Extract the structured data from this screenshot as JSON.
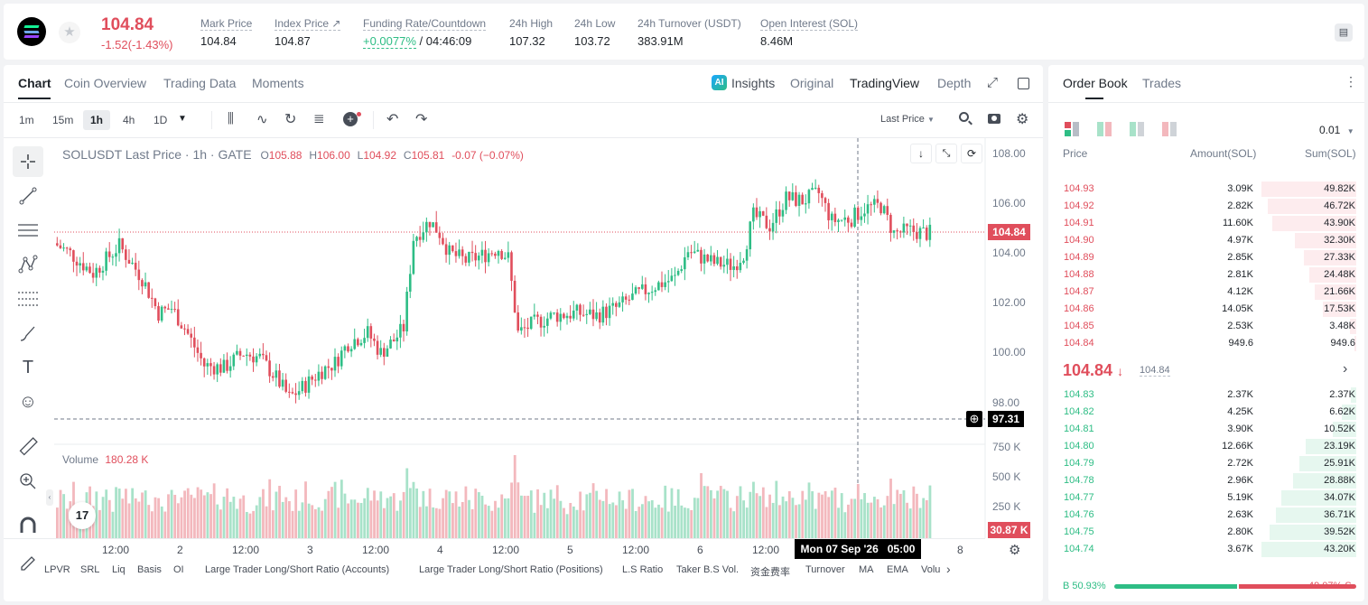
{
  "header": {
    "price": "104.84",
    "change": "-1.52(-1.43%)",
    "stats": [
      {
        "label": "Mark Price",
        "value": "104.84"
      },
      {
        "label": "Index Price ↗",
        "value": "104.87"
      },
      {
        "label": "Funding Rate/Countdown",
        "value_green": "+0.0077%",
        "value": "/ 04:46:09"
      },
      {
        "label": "24h High",
        "value": "107.32"
      },
      {
        "label": "24h Low",
        "value": "103.72"
      },
      {
        "label": "24h Turnover (USDT)",
        "value": "383.91M"
      },
      {
        "label": "Open Interest (SOL)",
        "value": "8.46M"
      }
    ]
  },
  "chart_tabs": [
    "Chart",
    "Coin Overview",
    "Trading Data",
    "Moments"
  ],
  "chart_views": {
    "insights": "Insights",
    "original": "Original",
    "tradingview": "TradingView",
    "depth": "Depth"
  },
  "timeframes": [
    "1m",
    "15m",
    "1h",
    "4h",
    "1D"
  ],
  "price_type": "Last Price",
  "legend": {
    "symbol": "SOLUSDT Last Price · 1h · GATE",
    "o_l": "O",
    "o": "105.88",
    "h_l": "H",
    "h": "106.00",
    "l_l": "L",
    "l": "104.92",
    "c_l": "C",
    "c": "105.81",
    "chg": "-0.07 (−0.07%)"
  },
  "volume_legend": {
    "label": "Volume",
    "value": "180.28 K"
  },
  "price_axis": [
    "108.00",
    "106.00",
    "104.00",
    "102.00",
    "100.00",
    "98.00"
  ],
  "volume_axis": [
    "750 K",
    "500 K",
    "250 K"
  ],
  "last_price_tag": "104.84",
  "crosshair_price_tag": "97.31",
  "volume_tag": "30.87 K",
  "time_axis": [
    "12:00",
    "2",
    "12:00",
    "3",
    "12:00",
    "4",
    "12:00",
    "5",
    "12:00",
    "6",
    "12:00",
    "8"
  ],
  "crosshair_time": "Mon 07 Sep '26   05:00",
  "indicators": [
    "LPVR",
    "SRL",
    "Liq",
    "Basis",
    "OI",
    "Large Trader Long/Short Ratio (Accounts)",
    "Large Trader Long/Short Ratio (Positions)",
    "L.S Ratio",
    "Taker B.S Vol.",
    "资金费率",
    "Turnover",
    "MA",
    "EMA",
    "Volu"
  ],
  "orderbook": {
    "tabs": [
      "Order Book",
      "Trades"
    ],
    "precision": "0.01",
    "columns": [
      "Price",
      "Amount(SOL)",
      "Sum(SOL)"
    ],
    "asks": [
      [
        "104.93",
        "3.09K",
        "49.82K"
      ],
      [
        "104.92",
        "2.82K",
        "46.72K"
      ],
      [
        "104.91",
        "11.60K",
        "43.90K"
      ],
      [
        "104.90",
        "4.97K",
        "32.30K"
      ],
      [
        "104.89",
        "2.85K",
        "27.33K"
      ],
      [
        "104.88",
        "2.81K",
        "24.48K"
      ],
      [
        "104.87",
        "4.12K",
        "21.66K"
      ],
      [
        "104.86",
        "14.05K",
        "17.53K"
      ],
      [
        "104.85",
        "2.53K",
        "3.48K"
      ],
      [
        "104.84",
        "949.6",
        "949.6"
      ]
    ],
    "mid_price": "104.84",
    "mid_arrow": "↓",
    "mark": "104.84",
    "bids": [
      [
        "104.83",
        "2.37K",
        "2.37K"
      ],
      [
        "104.82",
        "4.25K",
        "6.62K"
      ],
      [
        "104.81",
        "3.90K",
        "10.52K"
      ],
      [
        "104.80",
        "12.66K",
        "23.19K"
      ],
      [
        "104.79",
        "2.72K",
        "25.91K"
      ],
      [
        "104.78",
        "2.96K",
        "28.88K"
      ],
      [
        "104.77",
        "5.19K",
        "34.07K"
      ],
      [
        "104.76",
        "2.63K",
        "36.71K"
      ],
      [
        "104.75",
        "2.80K",
        "39.52K"
      ],
      [
        "104.74",
        "3.67K",
        "43.20K"
      ]
    ],
    "buy_ratio": "B 50.93%",
    "sell_ratio": "49.07% S",
    "buy_pct": 50.93
  },
  "colors": {
    "up": "#2ebd85",
    "down": "#e04e5c",
    "accent": "#1e2329"
  }
}
